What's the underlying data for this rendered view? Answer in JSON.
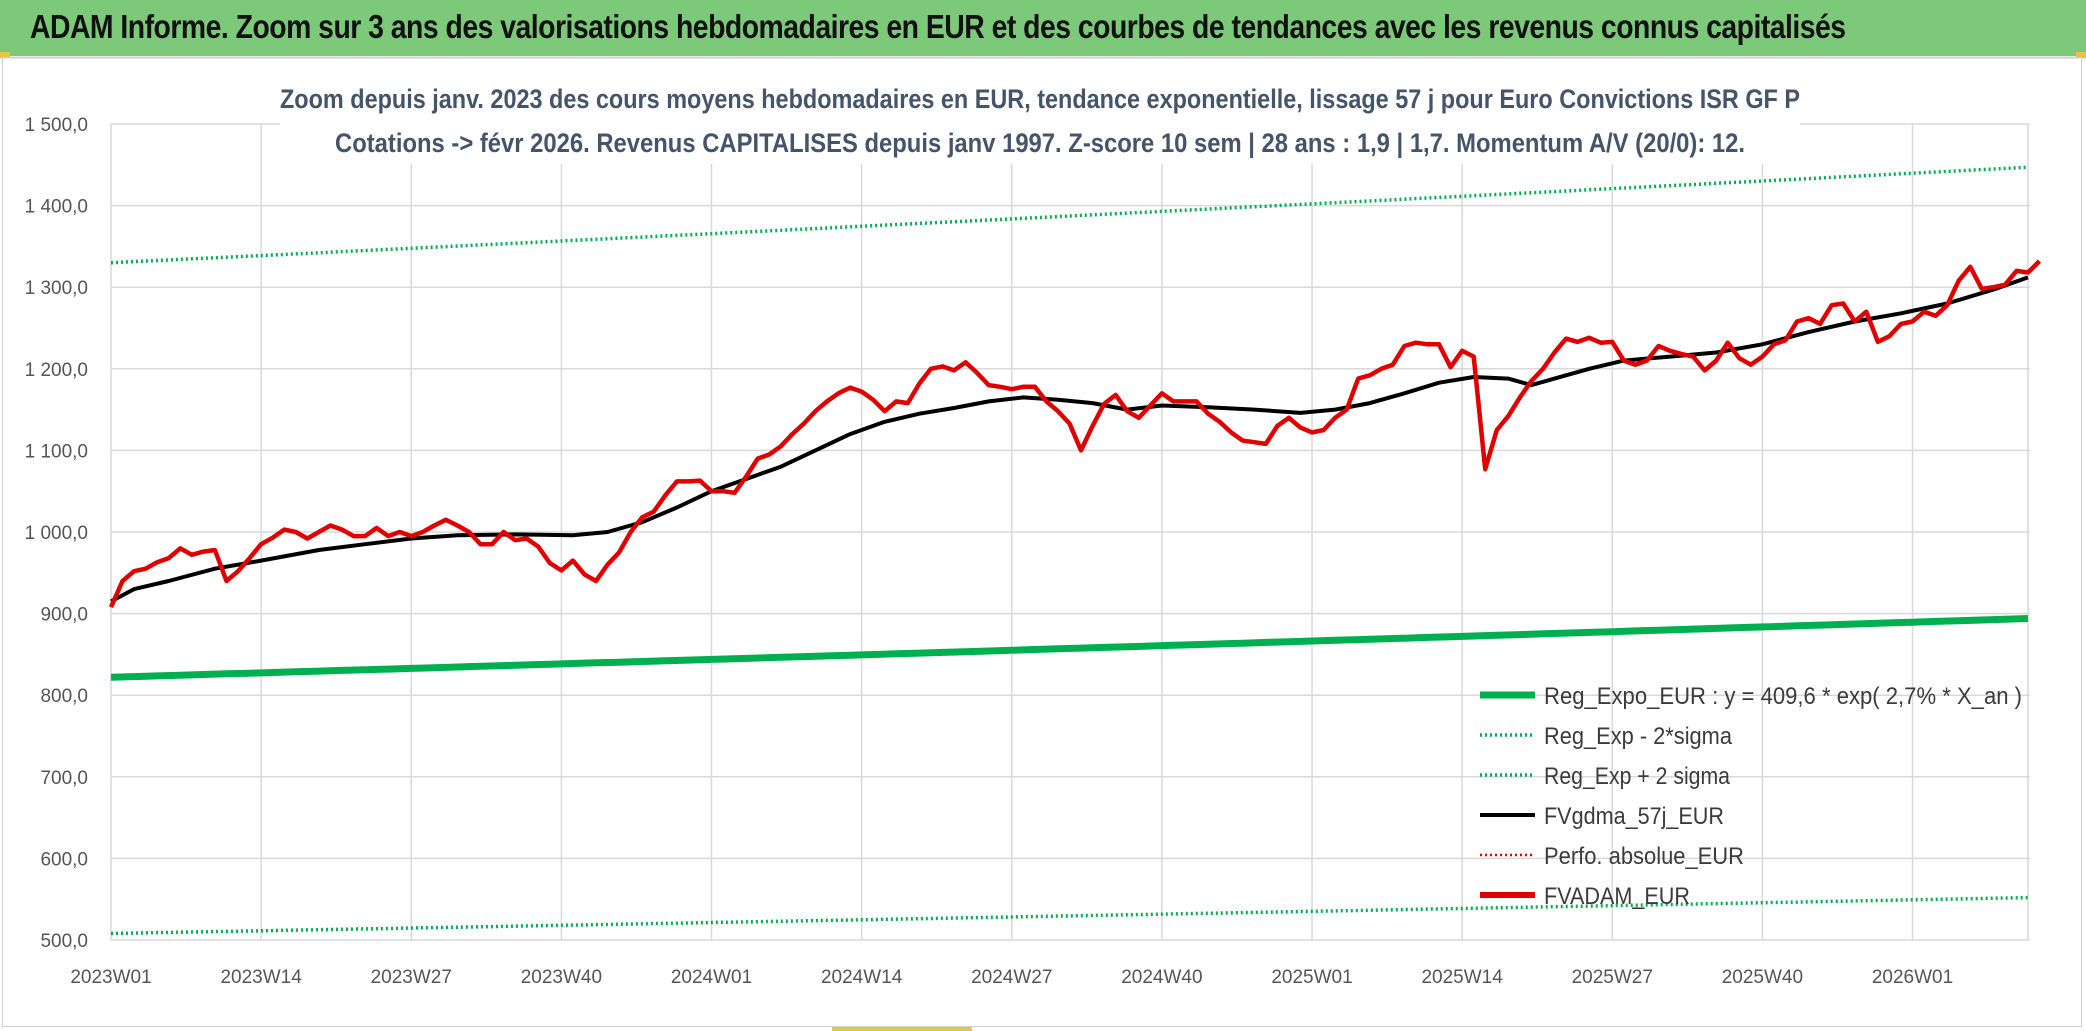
{
  "header": {
    "title": "ADAM Informe. Zoom sur 3 ans des valorisations hebdomadaires en EUR et des courbes de tendances avec les revenus connus capitalisés"
  },
  "colors": {
    "header_bg": "#7dc97a",
    "green": "#00b050",
    "red": "#e00000",
    "black": "#000000",
    "grid": "#d9d9d9"
  },
  "chart_data": {
    "type": "line",
    "title_line1": "Zoom depuis janv. 2023 des cours moyens hebdomadaires en EUR, tendance exponentielle, lissage 57 j pour Euro Convictions ISR GF P",
    "title_line2": "Cotations -> févr 2026. Revenus CAPITALISES depuis janv 1997. Z-score 10 sem | 28 ans : 1,9 | 1,7. Momentum A/V (20/0): 12.",
    "ylim": [
      500,
      1500
    ],
    "y_ticks": [
      "1 500,0",
      "1 400,0",
      "1 300,0",
      "1 200,0",
      "1 100,0",
      "1 000,0",
      "900,0",
      "800,0",
      "700,0",
      "600,0",
      "500,0"
    ],
    "x_ticks": [
      "2023W01",
      "2023W14",
      "2023W27",
      "2023W40",
      "2024W01",
      "2024W14",
      "2024W27",
      "2024W40",
      "2025W01",
      "2025W14",
      "2025W27",
      "2025W40",
      "2026W01"
    ],
    "n_weeks": 166,
    "legend": [
      {
        "name": "Reg_Expo_EUR : y = 409,6 * exp( 2,7% *  X_an )",
        "style": "thick-green"
      },
      {
        "name": "Reg_Exp - 2*sigma",
        "style": "dotted-green"
      },
      {
        "name": "Reg_Exp + 2 sigma",
        "style": "dotted-green"
      },
      {
        "name": "FVgdma_57j_EUR",
        "style": "black"
      },
      {
        "name": "Perfo. absolue_EUR",
        "style": "dotted-red"
      },
      {
        "name": "FVADAM_EUR",
        "style": "red"
      }
    ],
    "series": [
      {
        "name": "Reg_Expo_EUR",
        "start": 822,
        "end": 894
      },
      {
        "name": "Reg_Exp - 2*sigma",
        "start": 508,
        "end": 552
      },
      {
        "name": "Reg_Exp + 2 sigma",
        "start": 1330,
        "end": 1447
      },
      {
        "name": "FVgdma_57j_EUR",
        "keypoints": [
          [
            0,
            915
          ],
          [
            2,
            930
          ],
          [
            5,
            940
          ],
          [
            9,
            955
          ],
          [
            13,
            965
          ],
          [
            18,
            978
          ],
          [
            22,
            985
          ],
          [
            26,
            992
          ],
          [
            30,
            996
          ],
          [
            35,
            997
          ],
          [
            40,
            996
          ],
          [
            43,
            1000
          ],
          [
            46,
            1012
          ],
          [
            49,
            1030
          ],
          [
            52,
            1050
          ],
          [
            55,
            1065
          ],
          [
            58,
            1080
          ],
          [
            61,
            1100
          ],
          [
            64,
            1120
          ],
          [
            67,
            1135
          ],
          [
            70,
            1145
          ],
          [
            73,
            1152
          ],
          [
            76,
            1160
          ],
          [
            79,
            1165
          ],
          [
            82,
            1162
          ],
          [
            85,
            1158
          ],
          [
            88,
            1150
          ],
          [
            91,
            1155
          ],
          [
            95,
            1153
          ],
          [
            99,
            1150
          ],
          [
            103,
            1146
          ],
          [
            106,
            1150
          ],
          [
            109,
            1158
          ],
          [
            112,
            1170
          ],
          [
            115,
            1183
          ],
          [
            118,
            1190
          ],
          [
            121,
            1188
          ],
          [
            123,
            1180
          ],
          [
            125,
            1188
          ],
          [
            128,
            1200
          ],
          [
            131,
            1210
          ],
          [
            135,
            1215
          ],
          [
            139,
            1220
          ],
          [
            143,
            1230
          ],
          [
            147,
            1245
          ],
          [
            151,
            1258
          ],
          [
            155,
            1268
          ],
          [
            159,
            1280
          ],
          [
            163,
            1297
          ],
          [
            166,
            1312
          ]
        ]
      },
      {
        "name": "FVADAM_EUR",
        "keypoints": [
          [
            0,
            908
          ],
          [
            1,
            940
          ],
          [
            2,
            952
          ],
          [
            3,
            955
          ],
          [
            4,
            963
          ],
          [
            5,
            968
          ],
          [
            6,
            980
          ],
          [
            7,
            972
          ],
          [
            8,
            976
          ],
          [
            9,
            978
          ],
          [
            10,
            940
          ],
          [
            11,
            952
          ],
          [
            12,
            968
          ],
          [
            13,
            985
          ],
          [
            14,
            993
          ],
          [
            15,
            1003
          ],
          [
            16,
            1000
          ],
          [
            17,
            992
          ],
          [
            18,
            1000
          ],
          [
            19,
            1008
          ],
          [
            20,
            1003
          ],
          [
            21,
            995
          ],
          [
            22,
            995
          ],
          [
            23,
            1005
          ],
          [
            24,
            995
          ],
          [
            25,
            1000
          ],
          [
            26,
            995
          ],
          [
            27,
            1000
          ],
          [
            28,
            1008
          ],
          [
            29,
            1015
          ],
          [
            30,
            1008
          ],
          [
            31,
            1000
          ],
          [
            32,
            985
          ],
          [
            33,
            985
          ],
          [
            34,
            1000
          ],
          [
            35,
            990
          ],
          [
            36,
            992
          ],
          [
            37,
            982
          ],
          [
            38,
            962
          ],
          [
            39,
            953
          ],
          [
            40,
            965
          ],
          [
            41,
            948
          ],
          [
            42,
            940
          ],
          [
            43,
            960
          ],
          [
            44,
            975
          ],
          [
            45,
            1000
          ],
          [
            46,
            1018
          ],
          [
            47,
            1025
          ],
          [
            48,
            1045
          ],
          [
            49,
            1062
          ],
          [
            50,
            1062
          ],
          [
            51,
            1063
          ],
          [
            52,
            1050
          ],
          [
            53,
            1050
          ],
          [
            54,
            1048
          ],
          [
            55,
            1068
          ],
          [
            56,
            1090
          ],
          [
            57,
            1095
          ],
          [
            58,
            1105
          ],
          [
            59,
            1120
          ],
          [
            60,
            1133
          ],
          [
            61,
            1148
          ],
          [
            62,
            1160
          ],
          [
            63,
            1170
          ],
          [
            64,
            1177
          ],
          [
            65,
            1172
          ],
          [
            66,
            1162
          ],
          [
            67,
            1148
          ],
          [
            68,
            1160
          ],
          [
            69,
            1158
          ],
          [
            70,
            1182
          ],
          [
            71,
            1200
          ],
          [
            72,
            1203
          ],
          [
            73,
            1198
          ],
          [
            74,
            1208
          ],
          [
            75,
            1195
          ],
          [
            76,
            1180
          ],
          [
            77,
            1178
          ],
          [
            78,
            1175
          ],
          [
            79,
            1178
          ],
          [
            80,
            1178
          ],
          [
            81,
            1160
          ],
          [
            82,
            1148
          ],
          [
            83,
            1133
          ],
          [
            84,
            1100
          ],
          [
            85,
            1130
          ],
          [
            86,
            1157
          ],
          [
            87,
            1168
          ],
          [
            88,
            1148
          ],
          [
            89,
            1140
          ],
          [
            90,
            1155
          ],
          [
            91,
            1170
          ],
          [
            92,
            1160
          ],
          [
            93,
            1160
          ],
          [
            94,
            1160
          ],
          [
            95,
            1145
          ],
          [
            96,
            1135
          ],
          [
            97,
            1122
          ],
          [
            98,
            1112
          ],
          [
            99,
            1110
          ],
          [
            100,
            1108
          ],
          [
            101,
            1130
          ],
          [
            102,
            1140
          ],
          [
            103,
            1128
          ],
          [
            104,
            1122
          ],
          [
            105,
            1125
          ],
          [
            106,
            1140
          ],
          [
            107,
            1150
          ],
          [
            108,
            1188
          ],
          [
            109,
            1192
          ],
          [
            110,
            1200
          ],
          [
            111,
            1205
          ],
          [
            112,
            1228
          ],
          [
            113,
            1232
          ],
          [
            114,
            1230
          ],
          [
            115,
            1230
          ],
          [
            116,
            1202
          ],
          [
            117,
            1222
          ],
          [
            118,
            1215
          ],
          [
            119,
            1077
          ],
          [
            120,
            1125
          ],
          [
            121,
            1142
          ],
          [
            122,
            1165
          ],
          [
            123,
            1185
          ],
          [
            124,
            1200
          ],
          [
            125,
            1220
          ],
          [
            126,
            1237
          ],
          [
            127,
            1233
          ],
          [
            128,
            1238
          ],
          [
            129,
            1232
          ],
          [
            130,
            1233
          ],
          [
            131,
            1210
          ],
          [
            132,
            1205
          ],
          [
            133,
            1210
          ],
          [
            134,
            1228
          ],
          [
            135,
            1222
          ],
          [
            136,
            1218
          ],
          [
            137,
            1215
          ],
          [
            138,
            1198
          ],
          [
            139,
            1210
          ],
          [
            140,
            1232
          ],
          [
            141,
            1213
          ],
          [
            142,
            1205
          ],
          [
            143,
            1215
          ],
          [
            144,
            1230
          ],
          [
            145,
            1235
          ],
          [
            146,
            1258
          ],
          [
            147,
            1262
          ],
          [
            148,
            1255
          ],
          [
            149,
            1278
          ],
          [
            150,
            1280
          ],
          [
            151,
            1258
          ],
          [
            152,
            1270
          ],
          [
            153,
            1233
          ],
          [
            154,
            1240
          ],
          [
            155,
            1255
          ],
          [
            156,
            1258
          ],
          [
            157,
            1270
          ],
          [
            158,
            1265
          ],
          [
            159,
            1278
          ],
          [
            160,
            1308
          ],
          [
            161,
            1325
          ],
          [
            162,
            1298
          ],
          [
            163,
            1300
          ],
          [
            164,
            1303
          ],
          [
            165,
            1320
          ],
          [
            166,
            1318
          ],
          [
            167,
            1332
          ]
        ]
      }
    ]
  }
}
